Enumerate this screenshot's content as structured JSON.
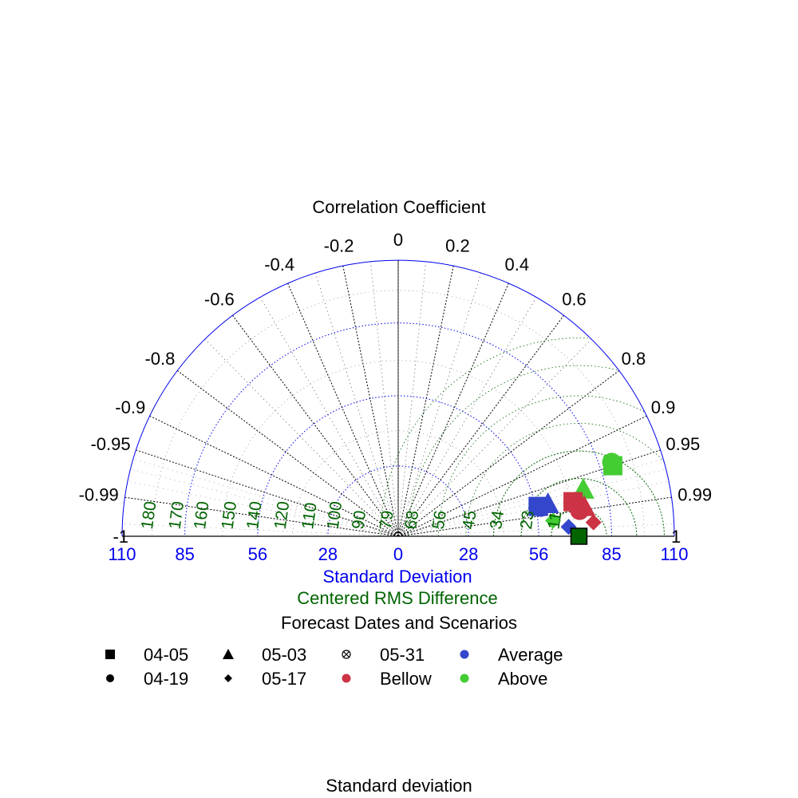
{
  "chart_data": {
    "type": "taylor",
    "title": "Correlation Coefficient",
    "xlabel": "Standard Deviation",
    "rms_label": "Centered RMS Difference",
    "sd_max": 110,
    "reference_sd": 72,
    "sd_ticks": [
      {
        "value": -110,
        "label": "110"
      },
      {
        "value": -85,
        "label": "85"
      },
      {
        "value": -56,
        "label": "56"
      },
      {
        "value": -28,
        "label": "28"
      },
      {
        "value": 0,
        "label": "0"
      },
      {
        "value": 28,
        "label": "28"
      },
      {
        "value": 56,
        "label": "56"
      },
      {
        "value": 85,
        "label": "85"
      },
      {
        "value": 110,
        "label": "110"
      }
    ],
    "sd_circles": [
      28,
      56,
      85
    ],
    "corr_labeled": [
      {
        "value": -1,
        "label": "-1"
      },
      {
        "value": -0.99,
        "label": "-0.99"
      },
      {
        "value": -0.95,
        "label": "-0.95"
      },
      {
        "value": -0.9,
        "label": "-0.9"
      },
      {
        "value": -0.8,
        "label": "-0.8"
      },
      {
        "value": -0.6,
        "label": "-0.6"
      },
      {
        "value": -0.4,
        "label": "-0.4"
      },
      {
        "value": -0.2,
        "label": "-0.2"
      },
      {
        "value": 0,
        "label": "0"
      },
      {
        "value": 0.2,
        "label": "0.2"
      },
      {
        "value": 0.4,
        "label": "0.4"
      },
      {
        "value": 0.6,
        "label": "0.6"
      },
      {
        "value": 0.8,
        "label": "0.8"
      },
      {
        "value": 0.9,
        "label": "0.9"
      },
      {
        "value": 0.95,
        "label": "0.95"
      },
      {
        "value": 0.99,
        "label": "0.99"
      },
      {
        "value": 1,
        "label": "1"
      }
    ],
    "corr_minor": [
      -0.7,
      -0.5,
      -0.3,
      -0.1,
      0.1,
      0.3,
      0.5,
      0.7
    ],
    "rms_circles": [
      11,
      23,
      34
    ],
    "rms_labels": [
      "11",
      "23",
      "34",
      "45",
      "56",
      "68",
      "79",
      "90",
      "100",
      "110",
      "120",
      "140",
      "150",
      "160",
      "170",
      "180"
    ],
    "rms_label_values": [
      11,
      23,
      34,
      45,
      56,
      68,
      79,
      90,
      100,
      110,
      120,
      140,
      150,
      160,
      170,
      180
    ],
    "rms_label_sd": [
      64,
      53,
      41,
      30,
      18,
      7,
      -3,
      -14,
      -24,
      -34,
      -45,
      -56,
      -66,
      -77,
      -87,
      -98
    ],
    "points": [
      {
        "scenario": "Above",
        "date": "04-05",
        "sd": 90,
        "corr": 0.95
      },
      {
        "scenario": "Above",
        "date": "04-19",
        "sd": 90,
        "corr": 0.945
      },
      {
        "scenario": "Above",
        "date": "05-03",
        "sd": 76,
        "corr": 0.97
      },
      {
        "scenario": "Above",
        "date": "05-17",
        "sd": 62,
        "corr": 0.995
      },
      {
        "scenario": "Average",
        "date": "04-05",
        "sd": 57,
        "corr": 0.978
      },
      {
        "scenario": "Average",
        "date": "04-19",
        "sd": 58,
        "corr": 0.98
      },
      {
        "scenario": "Average",
        "date": "05-03",
        "sd": 61,
        "corr": 0.978
      },
      {
        "scenario": "Average",
        "date": "05-17",
        "sd": 68,
        "corr": 0.9985
      },
      {
        "scenario": "Bellow",
        "date": "04-05",
        "sd": 71,
        "corr": 0.981
      },
      {
        "scenario": "Bellow",
        "date": "04-19",
        "sd": 73,
        "corr": 0.99
      },
      {
        "scenario": "Bellow",
        "date": "05-03",
        "sd": 75,
        "corr": 0.988
      },
      {
        "scenario": "Bellow",
        "date": "05-17",
        "sd": 78,
        "corr": 0.9975
      }
    ],
    "reference_point": {
      "sd": 72,
      "corr": 1
    }
  },
  "legend": {
    "title": "Forecast Dates and Scenarios",
    "items": [
      {
        "label": "04-05",
        "symbol": "square",
        "color": "#000000"
      },
      {
        "label": "05-03",
        "symbol": "triangle",
        "color": "#000000"
      },
      {
        "label": "05-31",
        "symbol": "crossed-circle",
        "color": "#000000"
      },
      {
        "label": "Average",
        "symbol": "dot",
        "color": "#3346cc"
      },
      {
        "label": "04-19",
        "symbol": "circle",
        "color": "#000000"
      },
      {
        "label": "05-17",
        "symbol": "diamond",
        "color": "#000000"
      },
      {
        "label": "Bellow",
        "symbol": "dot",
        "color": "#cc3344"
      },
      {
        "label": "Above",
        "symbol": "dot",
        "color": "#44cc33"
      }
    ]
  },
  "footer": "Standard deviation",
  "colors": {
    "sd_axis": "#0000ee",
    "rms": "#006400",
    "grid": "#000000",
    "average": "#3346cc",
    "bellow": "#cc3344",
    "above": "#44cc33",
    "reference": "#006400"
  }
}
